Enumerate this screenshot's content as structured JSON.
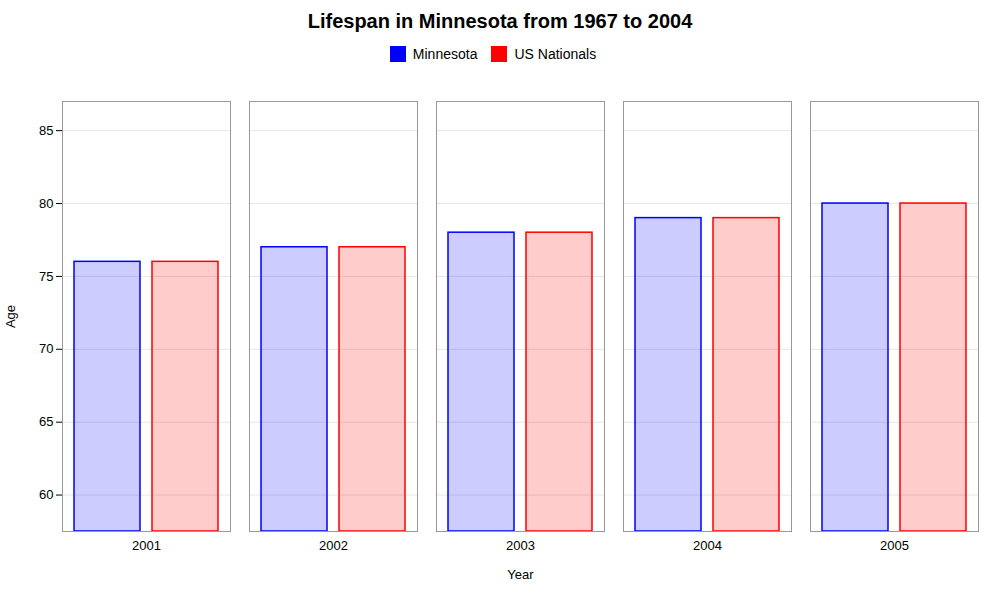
{
  "chart_data": {
    "type": "bar",
    "title": "Lifespan in Minnesota from 1967 to 2004",
    "xlabel": "Year",
    "ylabel": "Age",
    "categories": [
      2001,
      2002,
      2003,
      2004,
      2005
    ],
    "series": [
      {
        "name": "Minnesota",
        "color": "#0000ff",
        "values": [
          76.0,
          77.0,
          78.0,
          79.0,
          80.0
        ]
      },
      {
        "name": "US Nationals",
        "color": "#ff0000",
        "values": [
          76.0,
          77.0,
          78.0,
          79.0,
          80.0
        ]
      }
    ],
    "ylim": [
      57.5,
      87.0
    ],
    "yticks": [
      60,
      65,
      70,
      75,
      80,
      85
    ],
    "grid": true,
    "legend": "top"
  }
}
